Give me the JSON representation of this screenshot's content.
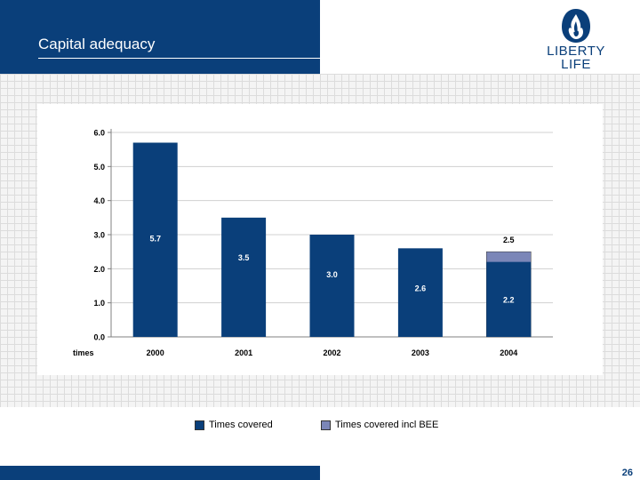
{
  "header": {
    "title": "Capital adequacy"
  },
  "logo": {
    "line1": "LIBERTY",
    "line2": "LIFE",
    "icon": "flame-emblem-icon"
  },
  "colors": {
    "brand": "#0a3f7a",
    "bee": "#7b86b8"
  },
  "chart_data": {
    "type": "bar",
    "categories": [
      "2000",
      "2001",
      "2002",
      "2003",
      "2004"
    ],
    "series": [
      {
        "name": "Times covered",
        "values": [
          5.7,
          3.5,
          3.0,
          2.6,
          2.2
        ],
        "labels": [
          "5.7",
          "3.5",
          "3.0",
          "2.6",
          "2.2"
        ]
      },
      {
        "name": "Times covered incl BEE",
        "values": [
          null,
          null,
          null,
          null,
          2.5
        ],
        "labels": [
          "",
          "",
          "",
          "",
          "2.5"
        ]
      }
    ],
    "yticks": [
      "0.0",
      "1.0",
      "2.0",
      "3.0",
      "4.0",
      "5.0",
      "6.0"
    ],
    "ylim": [
      0,
      6
    ],
    "ylabel": "times",
    "grid": true,
    "legend_position": "bottom"
  },
  "legend": {
    "item1": "Times covered",
    "item2": "Times covered incl BEE"
  },
  "footer": {
    "page_number": "26"
  }
}
